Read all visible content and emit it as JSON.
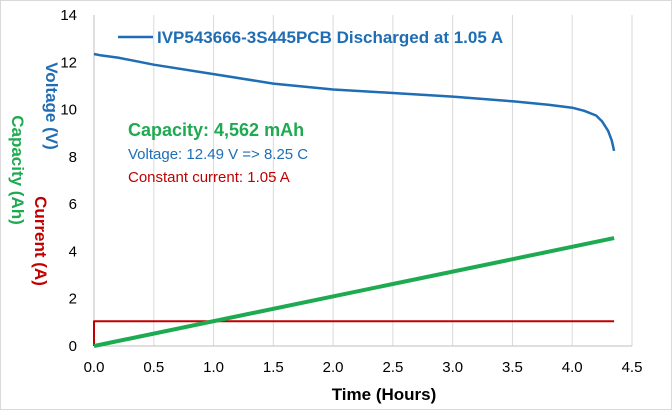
{
  "chart_data": {
    "type": "line",
    "title": "",
    "xlabel": "Time (Hours)",
    "ylabel_lines": [
      {
        "text": "Voltage (V)",
        "color": "#1f6db4"
      },
      {
        "text": "Current (A)",
        "color": "#c00000"
      },
      {
        "text": "Capacity (Ah)",
        "color": "#1eaa50"
      }
    ],
    "xlim": [
      0,
      4.5
    ],
    "ylim": [
      0,
      14
    ],
    "xticks": [
      "0.0",
      "0.5",
      "1.0",
      "1.5",
      "2.0",
      "2.5",
      "3.0",
      "3.5",
      "4.0",
      "4.5"
    ],
    "yticks": [
      "0",
      "2",
      "4",
      "6",
      "8",
      "10",
      "12",
      "14"
    ],
    "grid": "vertical",
    "legend": {
      "position": "top",
      "entry": "IVP543666-3S445PCB Discharged at 1.05 A"
    },
    "annotations": [
      {
        "text": "Capacity: 4,562 mAh",
        "color": "#1eaa50"
      },
      {
        "text": "Voltage: 12.49 V => 8.25 C",
        "color": "#1f6db4"
      },
      {
        "text": "Constant current: 1.05 A",
        "color": "#c00000"
      }
    ],
    "series": [
      {
        "name": "IVP543666-3S445PCB Discharged at 1.05 A",
        "color": "#1f6db4",
        "x": [
          0,
          0.05,
          0.2,
          0.5,
          1.0,
          1.5,
          2.0,
          2.5,
          3.0,
          3.5,
          3.8,
          4.0,
          4.1,
          4.2,
          4.25,
          4.3,
          4.33,
          4.35
        ],
        "y": [
          12.35,
          12.3,
          12.2,
          11.9,
          11.5,
          11.1,
          10.85,
          10.7,
          10.55,
          10.35,
          10.2,
          10.08,
          9.95,
          9.75,
          9.5,
          9.1,
          8.7,
          8.25
        ]
      },
      {
        "color": "#c00000",
        "x": [
          0,
          0,
          4.35
        ],
        "y": [
          0,
          1.05,
          1.05
        ]
      },
      {
        "color": "#1eaa50",
        "x": [
          0,
          4.35
        ],
        "y": [
          0,
          4.562
        ]
      }
    ]
  }
}
